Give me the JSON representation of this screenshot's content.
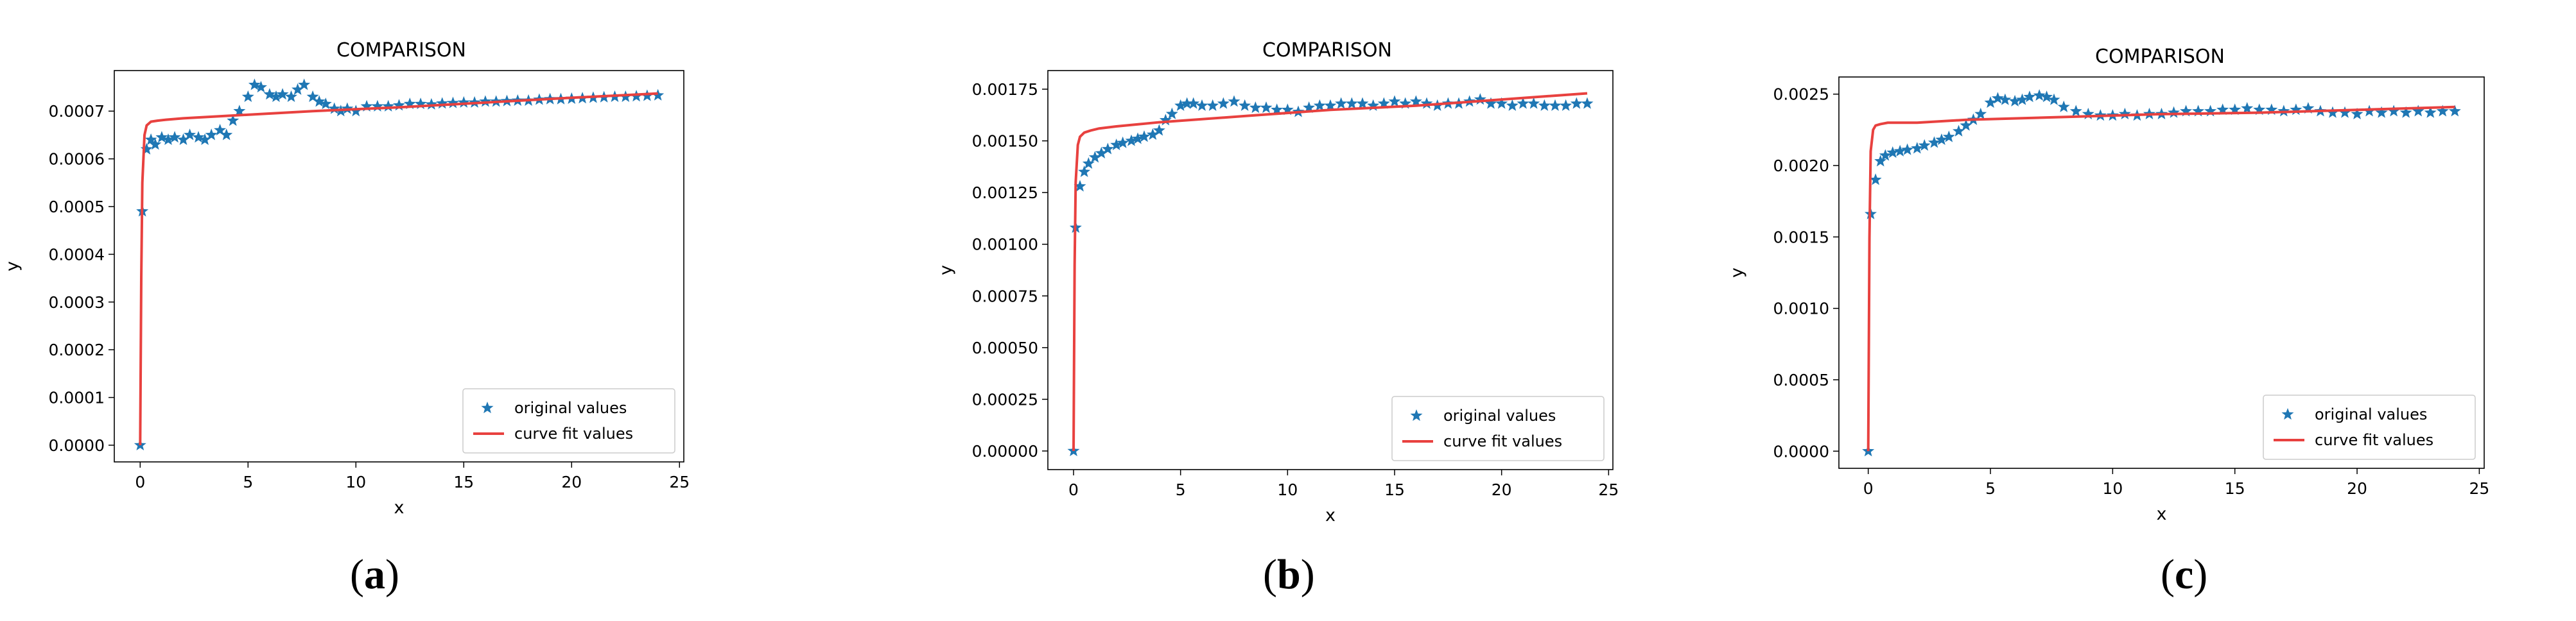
{
  "figure": {
    "panels": [
      {
        "caption_letter": "a",
        "chart_data": {
          "type": "scatter",
          "title": "COMPARISON",
          "xlabel": "x",
          "ylabel": "y",
          "xlim": [
            -1.2,
            25.2
          ],
          "ylim": [
            -3.5e-05,
            0.000785
          ],
          "xticks": [
            0,
            5,
            10,
            15,
            20,
            25
          ],
          "yticks": [
            0.0,
            0.0001,
            0.0002,
            0.0003,
            0.0004,
            0.0005,
            0.0006,
            0.0007
          ],
          "ytick_labels": [
            "0.0000",
            "0.0001",
            "0.0002",
            "0.0003",
            "0.0004",
            "0.0005",
            "0.0006",
            "0.0007"
          ],
          "grid": false,
          "legend_position": "lower-right",
          "series": [
            {
              "name": "original values",
              "kind": "markers",
              "marker": "star",
              "color": "#1f77b4",
              "x": [
                0,
                0.1,
                0.3,
                0.5,
                0.7,
                1.0,
                1.3,
                1.6,
                2.0,
                2.3,
                2.7,
                3.0,
                3.3,
                3.7,
                4.0,
                4.3,
                4.6,
                5.0,
                5.3,
                5.6,
                6.0,
                6.3,
                6.6,
                7.0,
                7.3,
                7.6,
                8.0,
                8.3,
                8.6,
                9.0,
                9.3,
                9.6,
                10.0,
                10.5,
                11.0,
                11.5,
                12.0,
                12.5,
                13.0,
                13.5,
                14.0,
                14.5,
                15.0,
                15.5,
                16.0,
                16.5,
                17.0,
                17.5,
                18.0,
                18.5,
                19.0,
                19.5,
                20.0,
                20.5,
                21.0,
                21.5,
                22.0,
                22.5,
                23.0,
                23.5,
                24.0
              ],
              "y": [
                0.0,
                0.00049,
                0.00062,
                0.00064,
                0.00063,
                0.000645,
                0.00064,
                0.000645,
                0.00064,
                0.00065,
                0.000645,
                0.00064,
                0.00065,
                0.00066,
                0.00065,
                0.00068,
                0.0007,
                0.00073,
                0.000755,
                0.00075,
                0.000735,
                0.00073,
                0.000735,
                0.00073,
                0.000745,
                0.000755,
                0.00073,
                0.00072,
                0.000715,
                0.000705,
                0.0007,
                0.000705,
                0.0007,
                0.00071,
                0.00071,
                0.00071,
                0.000712,
                0.000715,
                0.000715,
                0.000714,
                0.000716,
                0.000717,
                0.000718,
                0.000718,
                0.00072,
                0.00072,
                0.000721,
                0.000722,
                0.000722,
                0.000724,
                0.000725,
                0.000725,
                0.000726,
                0.000727,
                0.000728,
                0.000729,
                0.00073,
                0.00073,
                0.000731,
                0.000732,
                0.000733
              ]
            },
            {
              "name": "curve fit values",
              "kind": "line",
              "color": "#e8413f",
              "x": [
                0,
                0.05,
                0.1,
                0.2,
                0.3,
                0.5,
                0.8,
                1.2,
                2,
                4,
                8,
                12,
                16,
                20,
                24
              ],
              "y": [
                0.0,
                0.00035,
                0.00055,
                0.00065,
                0.00067,
                0.000678,
                0.00068,
                0.000682,
                0.000685,
                0.00069,
                0.0007,
                0.000708,
                0.000718,
                0.000728,
                0.000737
              ]
            }
          ]
        }
      },
      {
        "caption_letter": "b",
        "chart_data": {
          "type": "scatter",
          "title": "COMPARISON",
          "xlabel": "x",
          "ylabel": "y",
          "xlim": [
            -1.2,
            25.2
          ],
          "ylim": [
            -9e-05,
            0.00184
          ],
          "xticks": [
            0,
            5,
            10,
            15,
            20,
            25
          ],
          "yticks": [
            0.0,
            0.00025,
            0.0005,
            0.00075,
            0.001,
            0.00125,
            0.0015,
            0.00175
          ],
          "ytick_labels": [
            "0.00000",
            "0.00025",
            "0.00050",
            "0.00075",
            "0.00100",
            "0.00125",
            "0.00150",
            "0.00175"
          ],
          "grid": false,
          "legend_position": "lower-right",
          "series": [
            {
              "name": "original values",
              "kind": "markers",
              "marker": "star",
              "color": "#1f77b4",
              "x": [
                0,
                0.1,
                0.3,
                0.5,
                0.7,
                1.0,
                1.3,
                1.6,
                2.0,
                2.3,
                2.7,
                3.0,
                3.3,
                3.7,
                4.0,
                4.3,
                4.6,
                5.0,
                5.3,
                5.6,
                6.0,
                6.5,
                7.0,
                7.5,
                8.0,
                8.5,
                9.0,
                9.5,
                10.0,
                10.5,
                11.0,
                11.5,
                12.0,
                12.5,
                13.0,
                13.5,
                14.0,
                14.5,
                15.0,
                15.5,
                16.0,
                16.5,
                17.0,
                17.5,
                18.0,
                18.5,
                19.0,
                19.5,
                20.0,
                20.5,
                21.0,
                21.5,
                22.0,
                22.5,
                23.0,
                23.5,
                24.0
              ],
              "y": [
                0.0,
                0.00108,
                0.00128,
                0.00135,
                0.00139,
                0.00142,
                0.00144,
                0.00146,
                0.00148,
                0.00149,
                0.0015,
                0.00151,
                0.00152,
                0.00153,
                0.00155,
                0.0016,
                0.00163,
                0.00167,
                0.00168,
                0.00168,
                0.00167,
                0.00167,
                0.00168,
                0.00169,
                0.00167,
                0.00166,
                0.00166,
                0.00165,
                0.00165,
                0.00164,
                0.00166,
                0.00167,
                0.00167,
                0.00168,
                0.00168,
                0.00168,
                0.00167,
                0.00168,
                0.00169,
                0.00168,
                0.00169,
                0.00168,
                0.00167,
                0.00168,
                0.00168,
                0.00169,
                0.0017,
                0.00168,
                0.00168,
                0.00167,
                0.00168,
                0.00168,
                0.00167,
                0.00167,
                0.00167,
                0.00168,
                0.00168
              ]
            },
            {
              "name": "curve fit values",
              "kind": "line",
              "color": "#e8413f",
              "x": [
                0,
                0.05,
                0.1,
                0.2,
                0.3,
                0.5,
                0.8,
                1.2,
                2,
                4,
                8,
                12,
                16,
                20,
                24
              ],
              "y": [
                0.0,
                0.0009,
                0.0013,
                0.00148,
                0.00152,
                0.00154,
                0.00155,
                0.00156,
                0.00157,
                0.00159,
                0.00162,
                0.00165,
                0.00167,
                0.0017,
                0.00173
              ]
            }
          ]
        }
      },
      {
        "caption_letter": "c",
        "chart_data": {
          "type": "scatter",
          "title": "COMPARISON",
          "xlabel": "x",
          "ylabel": "y",
          "xlim": [
            -1.2,
            25.2
          ],
          "ylim": [
            -0.00012,
            0.00262
          ],
          "xticks": [
            0,
            5,
            10,
            15,
            20,
            25
          ],
          "yticks": [
            0.0,
            0.0005,
            0.001,
            0.0015,
            0.002,
            0.0025
          ],
          "ytick_labels": [
            "0.0000",
            "0.0005",
            "0.0010",
            "0.0015",
            "0.0020",
            "0.0025"
          ],
          "grid": false,
          "legend_position": "lower-right",
          "series": [
            {
              "name": "original values",
              "kind": "markers",
              "marker": "star",
              "color": "#1f77b4",
              "x": [
                0,
                0.1,
                0.3,
                0.5,
                0.7,
                1.0,
                1.3,
                1.6,
                2.0,
                2.3,
                2.7,
                3.0,
                3.3,
                3.7,
                4.0,
                4.3,
                4.6,
                5.0,
                5.3,
                5.6,
                6.0,
                6.3,
                6.6,
                7.0,
                7.3,
                7.6,
                8.0,
                8.5,
                9.0,
                9.5,
                10.0,
                10.5,
                11.0,
                11.5,
                12.0,
                12.5,
                13.0,
                13.5,
                14.0,
                14.5,
                15.0,
                15.5,
                16.0,
                16.5,
                17.0,
                17.5,
                18.0,
                18.5,
                19.0,
                19.5,
                20.0,
                20.5,
                21.0,
                21.5,
                22.0,
                22.5,
                23.0,
                23.5,
                24.0
              ],
              "y": [
                0.0,
                0.00166,
                0.0019,
                0.00203,
                0.00207,
                0.00209,
                0.0021,
                0.00211,
                0.00212,
                0.00214,
                0.00216,
                0.00218,
                0.0022,
                0.00224,
                0.00228,
                0.00232,
                0.00236,
                0.00244,
                0.00247,
                0.00246,
                0.00245,
                0.00246,
                0.00248,
                0.00249,
                0.00248,
                0.00246,
                0.00241,
                0.00238,
                0.00236,
                0.00235,
                0.00235,
                0.00236,
                0.00235,
                0.00236,
                0.00236,
                0.00237,
                0.00238,
                0.00238,
                0.00238,
                0.00239,
                0.00239,
                0.0024,
                0.00239,
                0.00239,
                0.00238,
                0.00239,
                0.0024,
                0.00238,
                0.00237,
                0.00237,
                0.00236,
                0.00238,
                0.00237,
                0.00238,
                0.00237,
                0.00238,
                0.00237,
                0.00238,
                0.00238
              ]
            },
            {
              "name": "curve fit values",
              "kind": "line",
              "color": "#e8413f",
              "x": [
                0,
                0.05,
                0.1,
                0.2,
                0.3,
                0.5,
                0.8,
                1.2,
                2,
                4,
                8,
                12,
                16,
                20,
                24
              ],
              "y": [
                0.0,
                0.0015,
                0.0021,
                0.00225,
                0.00228,
                0.00229,
                0.0023,
                0.0023,
                0.0023,
                0.00232,
                0.00234,
                0.00236,
                0.00237,
                0.00239,
                0.00241
              ]
            }
          ]
        }
      }
    ]
  }
}
